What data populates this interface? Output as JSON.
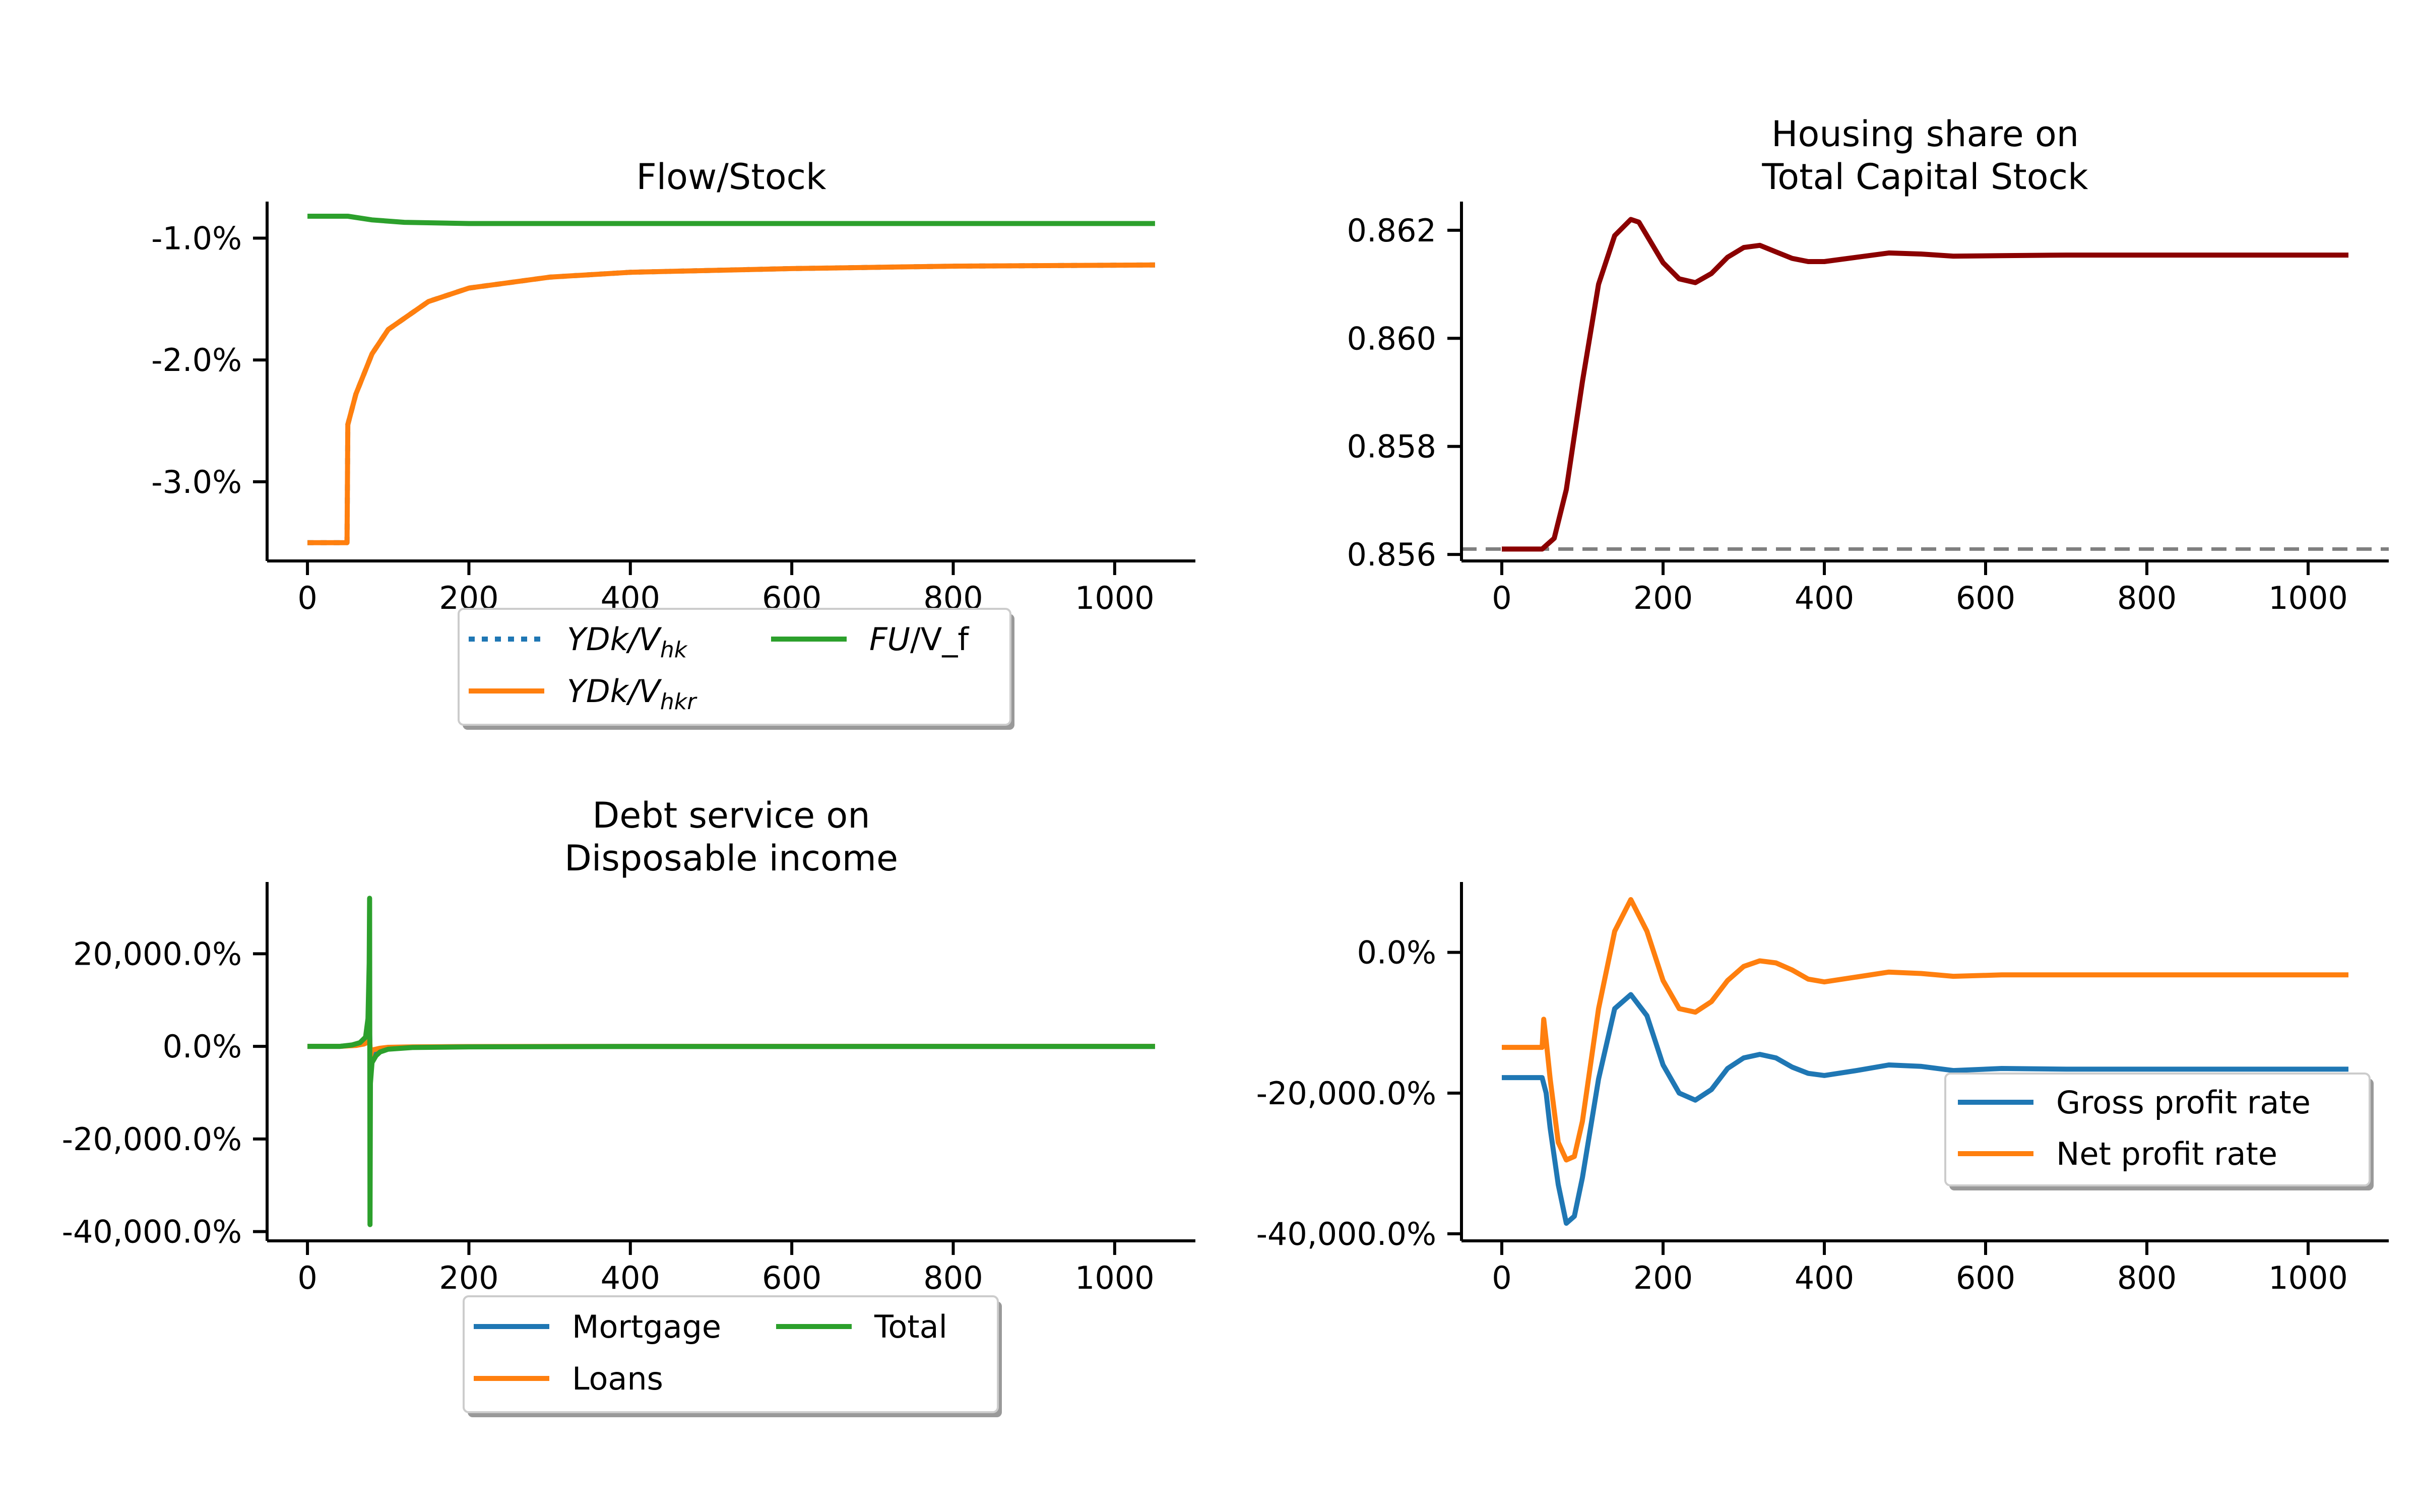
{
  "chart_data": [
    {
      "type": "line",
      "title": "Flow/Stock",
      "y_format": "percent",
      "xlim": [
        -50,
        1100
      ],
      "ylim": [
        -0.0365,
        -0.007
      ],
      "x_ticks": [
        0,
        200,
        400,
        600,
        800,
        1000
      ],
      "x_tick_labels": [
        "0",
        "200",
        "400",
        "600",
        "800",
        "1000"
      ],
      "y_ticks": [
        -0.03,
        -0.02,
        -0.01
      ],
      "y_tick_labels": [
        "-3.0%",
        "-2.0%",
        "-1.0%"
      ],
      "legend": {
        "placement": "below",
        "ncol": 2
      },
      "series": [
        {
          "name": "YDk/V_hk",
          "label_base": "YDk/V",
          "label_sub": "hk",
          "color": "#1f77b4",
          "style": "dotted",
          "x": [
            0,
            49,
            50,
            60,
            80,
            100,
            150,
            200,
            300,
            400,
            600,
            800,
            1050
          ],
          "y": [
            -0.035,
            -0.035,
            -0.0253,
            -0.0228,
            -0.0195,
            -0.0175,
            -0.0152,
            -0.0141,
            -0.0132,
            -0.0128,
            -0.0125,
            -0.0123,
            -0.0122
          ]
        },
        {
          "name": "YDk/V_hkr",
          "label_base": "YDk/V",
          "label_sub": "hkr",
          "color": "#ff7f0e",
          "style": "solid",
          "x": [
            0,
            49,
            50,
            60,
            80,
            100,
            150,
            200,
            300,
            400,
            600,
            800,
            1050
          ],
          "y": [
            -0.035,
            -0.035,
            -0.0253,
            -0.0228,
            -0.0195,
            -0.0175,
            -0.0152,
            -0.0141,
            -0.0132,
            -0.0128,
            -0.0125,
            -0.0123,
            -0.0122
          ]
        },
        {
          "name": "FU/V_f",
          "label_base": "FU",
          "label_rest": "/V_f",
          "color": "#2ca02c",
          "style": "solid",
          "x": [
            0,
            50,
            80,
            120,
            200,
            300,
            1050
          ],
          "y": [
            -0.0082,
            -0.0082,
            -0.0085,
            -0.0087,
            -0.0088,
            -0.0088,
            -0.0088
          ]
        }
      ]
    },
    {
      "type": "line",
      "title": "Housing share on\nTotal Capital Stock",
      "title_lines": [
        "Housing share on",
        "Total Capital Stock"
      ],
      "y_format": "fixed3",
      "xlim": [
        -50,
        1100
      ],
      "ylim": [
        0.85588,
        0.86253
      ],
      "x_ticks": [
        0,
        200,
        400,
        600,
        800,
        1000
      ],
      "x_tick_labels": [
        "0",
        "200",
        "400",
        "600",
        "800",
        "1000"
      ],
      "y_ticks": [
        0.856,
        0.858,
        0.86,
        0.862
      ],
      "y_tick_labels": [
        "0.856",
        "0.858",
        "0.860",
        "0.862"
      ],
      "hline": {
        "y": 0.8561,
        "color": "#7f7f7f",
        "style": "dashed"
      },
      "series": [
        {
          "name": "",
          "color": "#8b0000",
          "style": "solid",
          "x": [
            0,
            50,
            65,
            80,
            100,
            120,
            140,
            160,
            170,
            180,
            200,
            220,
            240,
            260,
            280,
            300,
            320,
            340,
            360,
            380,
            400,
            440,
            480,
            520,
            560,
            620,
            700,
            800,
            900,
            1050
          ],
          "y": [
            0.8561,
            0.8561,
            0.8563,
            0.8572,
            0.8592,
            0.861,
            0.8619,
            0.8622,
            0.86215,
            0.8619,
            0.8614,
            0.8611,
            0.86103,
            0.8612,
            0.8615,
            0.86168,
            0.86172,
            0.8616,
            0.86148,
            0.86142,
            0.86142,
            0.8615,
            0.86158,
            0.86156,
            0.86152,
            0.86153,
            0.86154,
            0.86154,
            0.86154,
            0.86154
          ]
        }
      ]
    },
    {
      "type": "line",
      "title": "Debt service on\nDisposable income",
      "title_lines": [
        "Debt service on",
        "Disposable income"
      ],
      "y_format": "percent",
      "xlim": [
        -50,
        1100
      ],
      "ylim": [
        -420,
        355
      ],
      "x_ticks": [
        0,
        200,
        400,
        600,
        800,
        1000
      ],
      "x_tick_labels": [
        "0",
        "200",
        "400",
        "600",
        "800",
        "1000"
      ],
      "y_ticks": [
        -400,
        -200,
        0,
        200
      ],
      "y_tick_labels": [
        "-40,000.0%",
        "-20,000.0%",
        "0.0%",
        "20,000.0%"
      ],
      "legend": {
        "placement": "below",
        "ncol": 2
      },
      "series": [
        {
          "name": "Mortgage",
          "color": "#1f77b4",
          "style": "solid",
          "x": [
            0,
            40,
            60,
            70,
            76,
            77,
            78,
            80,
            90,
            100,
            130,
            200,
            400,
            1050
          ],
          "y": [
            0,
            0,
            3,
            8,
            15,
            30,
            -30,
            -12,
            -5,
            -3,
            -1.5,
            -0.5,
            -0.2,
            -0.1
          ]
        },
        {
          "name": "Loans",
          "color": "#ff7f0e",
          "style": "solid",
          "x": [
            0,
            40,
            60,
            70,
            76,
            77,
            78,
            80,
            90,
            100,
            130,
            200,
            400,
            1050
          ],
          "y": [
            0,
            0,
            2,
            5,
            10,
            20,
            -20,
            -8,
            -4,
            -2,
            -1,
            -0.4,
            -0.1,
            0
          ]
        },
        {
          "name": "Total",
          "color": "#2ca02c",
          "style": "solid",
          "x": [
            0,
            40,
            55,
            65,
            72,
            75,
            76.5,
            77,
            77.5,
            78,
            80,
            85,
            90,
            100,
            130,
            200,
            400,
            1050
          ],
          "y": [
            0,
            0,
            3,
            8,
            20,
            60,
            180,
            320,
            -385,
            -80,
            -35,
            -20,
            -12,
            -6,
            -2.5,
            -1,
            -0.3,
            -0.1
          ]
        }
      ]
    },
    {
      "type": "line",
      "title": "",
      "y_format": "percent",
      "xlim": [
        -50,
        1100
      ],
      "ylim": [
        -410,
        100
      ],
      "x_ticks": [
        0,
        200,
        400,
        600,
        800,
        1000
      ],
      "x_tick_labels": [
        "0",
        "200",
        "400",
        "600",
        "800",
        "1000"
      ],
      "y_ticks": [
        -400,
        -200,
        0
      ],
      "y_tick_labels": [
        "-40,000.0%",
        "-20,000.0%",
        "0.0%"
      ],
      "legend": {
        "placement": "lower right",
        "ncol": 1
      },
      "series": [
        {
          "name": "Gross profit rate",
          "color": "#1f77b4",
          "style": "solid",
          "x": [
            0,
            49,
            50,
            55,
            60,
            70,
            80,
            90,
            100,
            120,
            140,
            160,
            180,
            200,
            220,
            240,
            260,
            280,
            300,
            320,
            340,
            360,
            380,
            400,
            440,
            480,
            520,
            560,
            620,
            700,
            800,
            900,
            1050
          ],
          "y": [
            -178,
            -178,
            -178,
            -200,
            -250,
            -330,
            -385,
            -375,
            -320,
            -180,
            -80,
            -60,
            -90,
            -160,
            -200,
            -210,
            -195,
            -165,
            -150,
            -145,
            -150,
            -163,
            -172,
            -175,
            -168,
            -160,
            -162,
            -168,
            -165,
            -166,
            -166,
            -166,
            -166
          ]
        },
        {
          "name": "Net profit rate",
          "color": "#ff7f0e",
          "style": "solid",
          "x": [
            0,
            49,
            50,
            52,
            55,
            60,
            70,
            80,
            90,
            100,
            120,
            140,
            160,
            180,
            200,
            220,
            240,
            260,
            280,
            300,
            320,
            340,
            360,
            380,
            400,
            440,
            480,
            520,
            560,
            620,
            700,
            800,
            900,
            1050
          ],
          "y": [
            -135,
            -135,
            -135,
            -95,
            -125,
            -180,
            -270,
            -295,
            -290,
            -240,
            -80,
            30,
            75,
            30,
            -40,
            -80,
            -85,
            -70,
            -40,
            -20,
            -12,
            -15,
            -25,
            -38,
            -42,
            -35,
            -28,
            -30,
            -34,
            -32,
            -32,
            -32,
            -32,
            -32
          ]
        }
      ]
    }
  ]
}
